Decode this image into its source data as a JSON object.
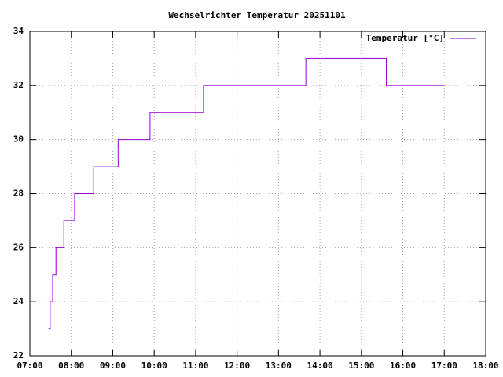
{
  "chart_data": {
    "type": "line",
    "title": "Wechselrichter Temperatur 20251101",
    "x": [
      7.45,
      7.49,
      7.49,
      7.55,
      7.55,
      7.63,
      7.63,
      7.82,
      7.82,
      8.08,
      8.08,
      8.54,
      8.54,
      9.13,
      9.13,
      9.9,
      9.9,
      11.19,
      11.19,
      13.66,
      13.66,
      15.6,
      15.6,
      17.0
    ],
    "series": [
      {
        "name": "Temperatur [°C]",
        "color": "#9400d3",
        "values": [
          23,
          23,
          24,
          24,
          25,
          25,
          26,
          26,
          27,
          27,
          28,
          28,
          29,
          29,
          30,
          30,
          31,
          31,
          32,
          32,
          33,
          33,
          32,
          32
        ]
      }
    ],
    "xlim": [
      7,
      18
    ],
    "xticks": [
      {
        "value": 7,
        "label": "07:00"
      },
      {
        "value": 8,
        "label": "08:00"
      },
      {
        "value": 9,
        "label": "09:00"
      },
      {
        "value": 10,
        "label": "10:00"
      },
      {
        "value": 11,
        "label": "11:00"
      },
      {
        "value": 12,
        "label": "12:00"
      },
      {
        "value": 13,
        "label": "13:00"
      },
      {
        "value": 14,
        "label": "14:00"
      },
      {
        "value": 15,
        "label": "15:00"
      },
      {
        "value": 16,
        "label": "16:00"
      },
      {
        "value": 17,
        "label": "17:00"
      },
      {
        "value": 18,
        "label": "18:00"
      }
    ],
    "ylim": [
      22,
      34
    ],
    "yticks": [
      22,
      24,
      26,
      28,
      30,
      32,
      34
    ],
    "grid": true,
    "legend": "top-right"
  }
}
